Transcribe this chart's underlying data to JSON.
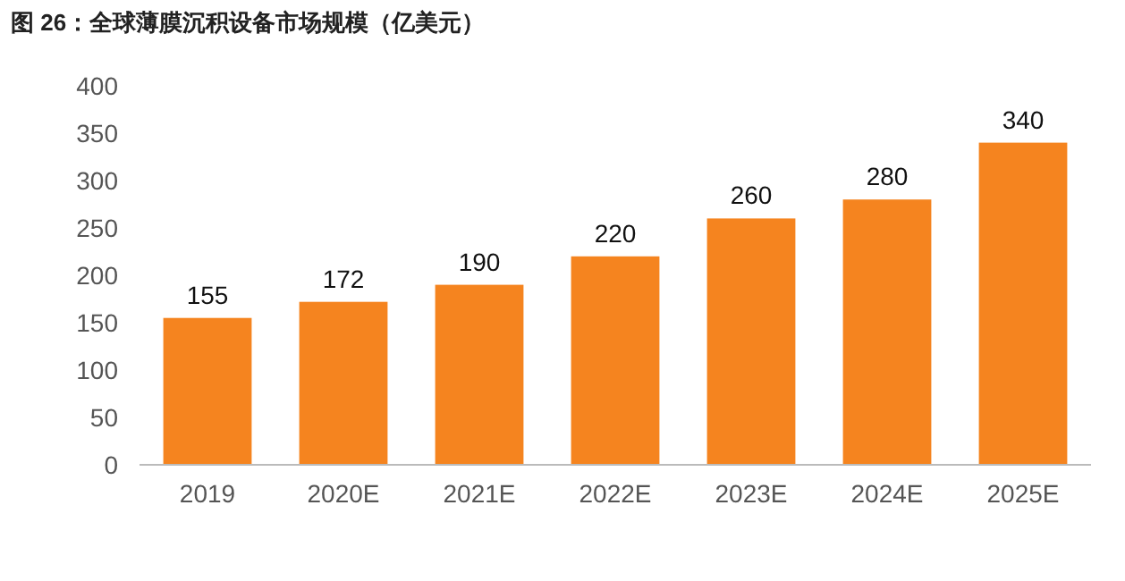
{
  "chart_data": {
    "type": "bar",
    "title": "图 26：全球薄膜沉积设备市场规模（亿美元）",
    "categories": [
      "2019",
      "2020E",
      "2021E",
      "2022E",
      "2023E",
      "2024E",
      "2025E"
    ],
    "values": [
      155,
      172,
      190,
      220,
      260,
      280,
      340
    ],
    "color": "#f5841f",
    "ylim": [
      0,
      400
    ],
    "yticks": [
      0,
      50,
      100,
      150,
      200,
      250,
      300,
      350,
      400
    ],
    "data_labels": true
  }
}
